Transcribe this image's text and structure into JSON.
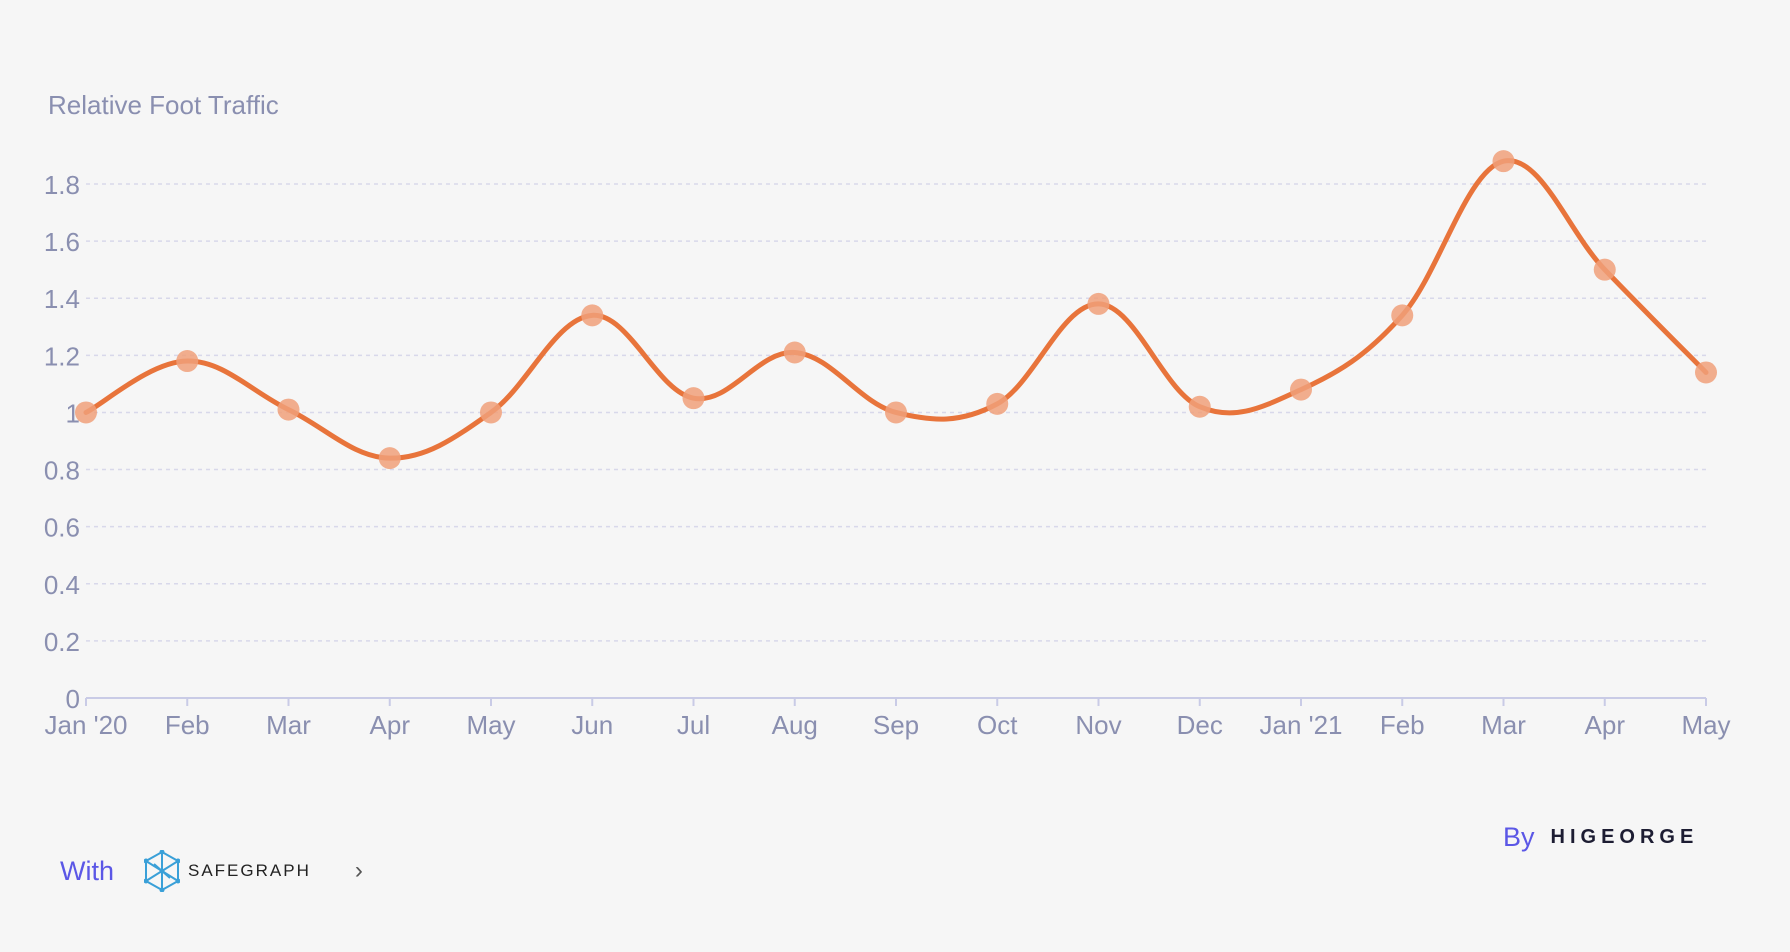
{
  "chart_data": {
    "type": "line",
    "title": "Relative Foot Traffic",
    "categories": [
      "Jan '20",
      "Feb",
      "Mar",
      "Apr",
      "May",
      "Jun",
      "Jul",
      "Aug",
      "Sep",
      "Oct",
      "Nov",
      "Dec",
      "Jan '21",
      "Feb",
      "Mar",
      "Apr",
      "May"
    ],
    "values": [
      1.0,
      1.18,
      1.01,
      0.84,
      1.0,
      1.34,
      1.05,
      1.21,
      1.0,
      1.03,
      1.38,
      1.02,
      1.08,
      1.34,
      1.88,
      1.5,
      1.14
    ],
    "ylim": [
      0,
      1.8
    ],
    "yticks": [
      0,
      0.2,
      0.4,
      0.6,
      0.8,
      1,
      1.2,
      1.4,
      1.6,
      1.8
    ],
    "grid": true,
    "colors": {
      "line": "#e8743b",
      "marker": "#f0a07a",
      "axis_text": "#8a8fb0",
      "grid": "#d8d8ea",
      "axis": "#c9cbe6"
    }
  },
  "footer": {
    "with_label": "With",
    "safegraph_logo_text": "SAFEGRAPH",
    "chevron_icon": "chevron-right-icon",
    "by_label": "By",
    "higeorge_logo_text": "HIGEORGE"
  }
}
